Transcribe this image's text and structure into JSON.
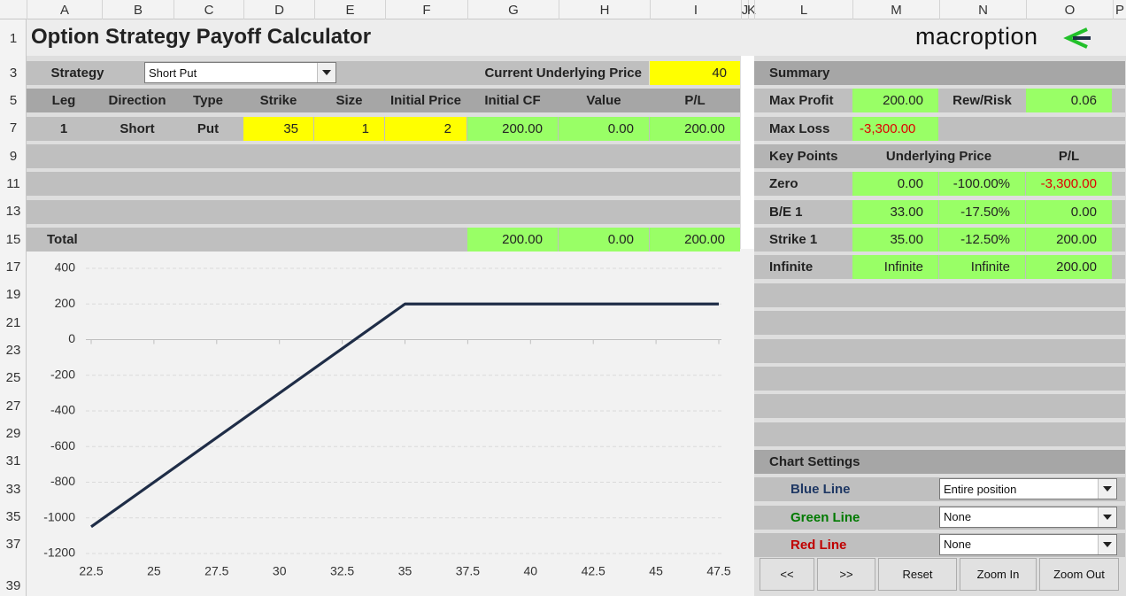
{
  "column_headers": [
    "A",
    "B",
    "C",
    "D",
    "E",
    "F",
    "G",
    "H",
    "I",
    "J",
    "K",
    "L",
    "M",
    "N",
    "O",
    "P"
  ],
  "row_numbers": [
    1,
    3,
    5,
    7,
    9,
    11,
    13,
    15,
    17,
    19,
    21,
    23,
    25,
    27,
    29,
    31,
    33,
    35,
    37,
    39
  ],
  "title": "Option Strategy Payoff Calculator",
  "logo": "macroption",
  "strategy": {
    "label": "Strategy",
    "value": "Short Put",
    "price_label": "Current Underlying Price",
    "price": 40
  },
  "legs_table": {
    "headers": [
      "Leg",
      "Direction",
      "Type",
      "Strike",
      "Size",
      "Initial Price",
      "Initial CF",
      "Value",
      "P/L"
    ],
    "rows": [
      [
        1,
        "Short",
        "Put",
        35,
        1,
        2,
        "200.00",
        "0.00",
        "200.00"
      ]
    ],
    "total": {
      "label": "Total",
      "initial_cf": "200.00",
      "value": "0.00",
      "pl": "200.00"
    }
  },
  "summary": {
    "title": "Summary",
    "max_profit_label": "Max Profit",
    "max_profit": "200.00",
    "rew_risk_label": "Rew/Risk",
    "rew_risk": "0.06",
    "max_loss_label": "Max Loss",
    "max_loss": "-3,300.00"
  },
  "key_points": {
    "headers": [
      "Key Points",
      "Underlying Price",
      "P/L"
    ],
    "rows": [
      [
        "Zero",
        "0.00",
        "-100.00%",
        "-3,300.00"
      ],
      [
        "B/E 1",
        "33.00",
        "-17.50%",
        "0.00"
      ],
      [
        "Strike 1",
        "35.00",
        "-12.50%",
        "200.00"
      ],
      [
        "Infinite",
        "Infinite",
        "Infinite",
        "200.00"
      ]
    ]
  },
  "chart_settings": {
    "title": "Chart Settings",
    "rows": [
      {
        "label": "Blue Line",
        "value": "Entire position"
      },
      {
        "label": "Green Line",
        "value": "None"
      },
      {
        "label": "Red Line",
        "value": "None"
      }
    ]
  },
  "buttons": [
    "<<",
    ">>",
    "Reset",
    "Zoom In",
    "Zoom Out"
  ],
  "chart_data": {
    "type": "line",
    "x": [
      22.5,
      35,
      47.5
    ],
    "values": [
      -1050,
      200,
      200
    ],
    "color": "#1f2d47",
    "xlim": [
      22.5,
      47.5
    ],
    "ylim": [
      -1200,
      400
    ],
    "xticks": [
      22.5,
      25,
      27.5,
      30,
      32.5,
      35,
      37.5,
      40,
      42.5,
      45,
      47.5
    ],
    "yticks": [
      -1200,
      -1000,
      -800,
      -600,
      -400,
      -200,
      0,
      200,
      400
    ],
    "grid": true
  }
}
